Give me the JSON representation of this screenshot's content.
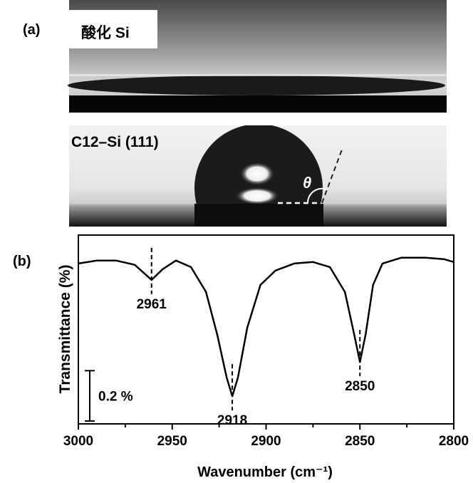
{
  "panel_a": {
    "label": "(a)",
    "top_label": "酸化 Si",
    "bottom_label": "C12–Si (111)",
    "angle_symbol": "θ"
  },
  "chart_data": {
    "type": "line",
    "panel_label": "(b)",
    "x_label": "Wavenumber (cm⁻¹)",
    "y_label": "Transmittance (%)",
    "x": [
      3000,
      2990,
      2980,
      2970,
      2961,
      2955,
      2948,
      2940,
      2932,
      2926,
      2921,
      2918,
      2915,
      2910,
      2903,
      2895,
      2885,
      2875,
      2866,
      2858,
      2853,
      2850,
      2847,
      2843,
      2838,
      2828,
      2815,
      2805,
      2800
    ],
    "values": [
      0.637,
      0.649,
      0.649,
      0.632,
      0.572,
      0.615,
      0.649,
      0.623,
      0.524,
      0.354,
      0.184,
      0.11,
      0.184,
      0.382,
      0.552,
      0.609,
      0.637,
      0.643,
      0.623,
      0.524,
      0.354,
      0.246,
      0.354,
      0.552,
      0.637,
      0.66,
      0.66,
      0.654,
      0.643
    ],
    "color": "#000000",
    "xlim": [
      3000,
      2800
    ],
    "xticks": [
      3000,
      2950,
      2900,
      2850,
      2800
    ],
    "xminor": [
      2975,
      2925,
      2875,
      2825
    ],
    "ylim": [
      0,
      0.75
    ],
    "peaks": [
      2961,
      2918,
      2850
    ],
    "scale_bar": {
      "value": 0.2,
      "label": "0.2 %"
    }
  }
}
